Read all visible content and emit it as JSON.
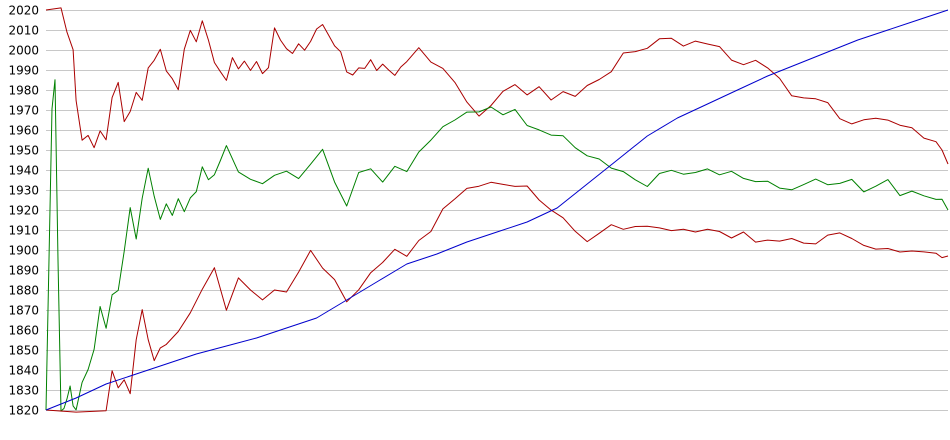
{
  "chart_data": {
    "type": "line",
    "title": "",
    "xlabel": "",
    "ylabel": "",
    "ylim": [
      1820,
      2020
    ],
    "xlim": [
      0,
      300
    ],
    "y_ticks": [
      1820,
      1830,
      1840,
      1850,
      1860,
      1870,
      1880,
      1890,
      1900,
      1910,
      1920,
      1930,
      1940,
      1950,
      1960,
      1970,
      1980,
      1990,
      2000,
      2010,
      2020
    ],
    "grid": true,
    "legend": "none",
    "background": "#ffffff",
    "grid_color": "#c8c8c8",
    "series": [
      {
        "color": "#aa0000",
        "x": [
          0,
          5,
          7,
          9,
          10,
          12,
          14,
          16,
          18,
          20,
          22,
          24,
          26,
          28,
          30,
          32,
          34,
          36,
          38,
          40,
          42,
          44,
          46,
          48,
          50,
          52,
          54,
          56,
          58,
          60,
          62,
          64,
          66,
          68,
          70,
          72,
          74,
          76,
          78,
          80,
          82,
          84,
          86,
          88,
          90,
          92,
          94,
          96,
          98,
          100,
          102,
          104,
          106,
          108,
          110,
          112,
          114,
          116,
          118,
          120,
          124,
          128,
          132,
          136,
          140,
          144,
          148,
          152,
          156,
          160,
          164,
          168,
          172,
          176,
          180,
          184,
          188,
          192,
          196,
          200,
          204,
          208,
          212,
          216,
          220,
          224,
          228,
          232,
          236,
          240,
          244,
          248,
          252,
          256,
          260,
          264,
          268,
          272,
          276,
          280,
          284,
          288,
          292,
          296,
          298,
          300
        ],
        "y": [
          2020,
          2020,
          2010,
          2000,
          1975,
          1955,
          1957,
          1952,
          1960,
          1955,
          1975,
          1983,
          1965,
          1968,
          1978,
          1975,
          1990,
          1995,
          2000,
          1990,
          1985,
          1980,
          2000,
          2010,
          2005,
          2015,
          2005,
          1995,
          1990,
          1985,
          1995,
          1990,
          1995,
          1990,
          1995,
          1988,
          1990,
          2010,
          2005,
          2000,
          1998,
          2002,
          2000,
          2005,
          2010,
          2012,
          2008,
          2002,
          2000,
          1990,
          1988,
          1992,
          1990,
          1995,
          1990,
          1992,
          1990,
          1988,
          1992,
          1995,
          2002,
          1995,
          1990,
          1985,
          1975,
          1968,
          1972,
          1980,
          1983,
          1978,
          1982,
          1975,
          1980,
          1978,
          1983,
          1985,
          1990,
          1998,
          2000,
          2002,
          2005,
          2006,
          2003,
          2005,
          2004,
          2002,
          1995,
          1993,
          1995,
          1990,
          1985,
          1978,
          1976,
          1975,
          1973,
          1965,
          1962,
          1966,
          1967,
          1965,
          1963,
          1960,
          1957,
          1955,
          1950,
          1943
        ],
        "x_detail": "dense"
      },
      {
        "color": "#008000",
        "x": [
          0,
          2,
          3,
          4,
          5,
          6,
          7,
          8,
          9,
          10,
          12,
          14,
          16,
          18,
          20,
          22,
          24,
          26,
          28,
          30,
          32,
          34,
          36,
          38,
          40,
          42,
          44,
          46,
          48,
          50,
          52,
          54,
          56,
          58,
          60,
          64,
          68,
          72,
          76,
          80,
          84,
          88,
          92,
          96,
          100,
          104,
          108,
          112,
          116,
          120,
          124,
          128,
          132,
          136,
          140,
          144,
          148,
          152,
          156,
          160,
          164,
          168,
          172,
          176,
          180,
          184,
          188,
          192,
          196,
          200,
          204,
          208,
          212,
          216,
          220,
          224,
          228,
          232,
          236,
          240,
          244,
          248,
          252,
          256,
          260,
          264,
          268,
          272,
          276,
          280,
          284,
          288,
          292,
          296,
          298,
          300
        ],
        "y": [
          1820,
          1970,
          1985,
          1895,
          1820,
          1820,
          1825,
          1832,
          1822,
          1820,
          1835,
          1840,
          1850,
          1872,
          1860,
          1878,
          1880,
          1900,
          1920,
          1905,
          1925,
          1940,
          1928,
          1915,
          1922,
          1918,
          1925,
          1920,
          1925,
          1930,
          1942,
          1935,
          1938,
          1945,
          1952,
          1940,
          1935,
          1932,
          1938,
          1940,
          1935,
          1942,
          1950,
          1935,
          1922,
          1938,
          1940,
          1935,
          1942,
          1938,
          1948,
          1955,
          1962,
          1965,
          1970,
          1968,
          1972,
          1968,
          1970,
          1962,
          1960,
          1958,
          1956,
          1950,
          1948,
          1945,
          1942,
          1938,
          1935,
          1932,
          1938,
          1940,
          1938,
          1940,
          1940,
          1938,
          1940,
          1935,
          1933,
          1935,
          1932,
          1930,
          1933,
          1935,
          1932,
          1933,
          1935,
          1930,
          1932,
          1935,
          1928,
          1930,
          1926,
          1925,
          1925,
          1920
        ],
        "x_detail": "dense"
      },
      {
        "color": "#aa0000",
        "x": [
          0,
          10,
          20,
          22,
          24,
          26,
          28,
          30,
          32,
          34,
          36,
          38,
          40,
          44,
          48,
          52,
          56,
          60,
          64,
          68,
          72,
          76,
          80,
          84,
          88,
          92,
          96,
          100,
          104,
          108,
          112,
          116,
          120,
          124,
          128,
          132,
          136,
          140,
          144,
          148,
          152,
          156,
          160,
          164,
          168,
          172,
          176,
          180,
          184,
          188,
          192,
          196,
          200,
          204,
          208,
          212,
          216,
          220,
          224,
          228,
          232,
          236,
          240,
          244,
          248,
          252,
          256,
          260,
          264,
          268,
          272,
          276,
          280,
          284,
          288,
          292,
          296,
          298,
          300
        ],
        "y": [
          1820,
          1820,
          1820,
          1840,
          1830,
          1835,
          1828,
          1855,
          1870,
          1855,
          1845,
          1850,
          1852,
          1860,
          1868,
          1880,
          1890,
          1870,
          1885,
          1880,
          1875,
          1880,
          1880,
          1890,
          1900,
          1890,
          1885,
          1875,
          1880,
          1888,
          1895,
          1900,
          1898,
          1905,
          1910,
          1920,
          1925,
          1930,
          1932,
          1934,
          1933,
          1932,
          1933,
          1925,
          1920,
          1915,
          1910,
          1903,
          1908,
          1912,
          1910,
          1912,
          1912,
          1912,
          1910,
          1910,
          1908,
          1910,
          1910,
          1905,
          1908,
          1903,
          1905,
          1905,
          1905,
          1903,
          1903,
          1908,
          1908,
          1905,
          1902,
          1900,
          1900,
          1898,
          1900,
          1898,
          1898,
          1897,
          1897
        ],
        "x_detail": "dense"
      },
      {
        "color": "#0000cc",
        "x": [
          0,
          10,
          20,
          30,
          40,
          50,
          60,
          70,
          80,
          90,
          100,
          110,
          120,
          130,
          140,
          150,
          160,
          170,
          180,
          190,
          200,
          210,
          220,
          230,
          240,
          250,
          260,
          270,
          280,
          290,
          300
        ],
        "y": [
          1820,
          1826,
          1833,
          1838,
          1843,
          1848,
          1852,
          1856,
          1861,
          1866,
          1875,
          1884,
          1893,
          1898,
          1904,
          1909,
          1914,
          1921,
          1933,
          1945,
          1957,
          1966,
          1973,
          1980,
          1987,
          1993,
          1999,
          2005,
          2010,
          2015,
          2020
        ]
      }
    ]
  }
}
